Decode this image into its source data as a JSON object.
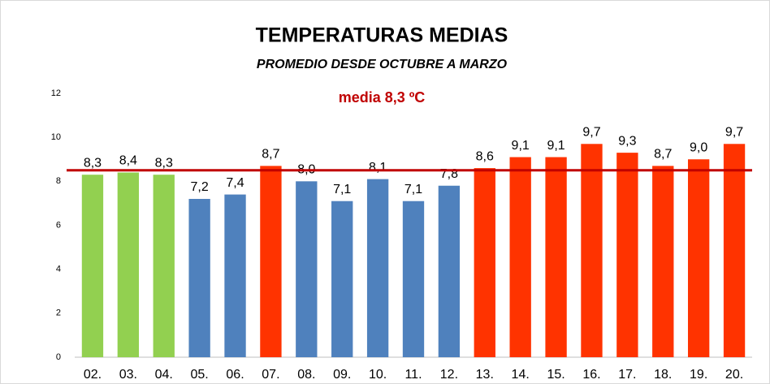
{
  "chart_data": {
    "type": "bar",
    "title": "TEMPERATURAS MEDIAS",
    "subtitle": "PROMEDIO DESDE OCTUBRE A MARZO",
    "annotation": "media 8,3 ºC",
    "categories": [
      "02.",
      "03.",
      "04.",
      "05.",
      "06.",
      "07.",
      "08.",
      "09.",
      "10.",
      "11.",
      "12.",
      "13.",
      "14.",
      "15.",
      "16.",
      "17.",
      "18.",
      "19.",
      "20."
    ],
    "values": [
      8.3,
      8.4,
      8.3,
      7.2,
      7.4,
      8.7,
      8.0,
      7.1,
      8.1,
      7.1,
      7.8,
      8.6,
      9.1,
      9.1,
      9.7,
      9.3,
      8.7,
      9.0,
      9.7
    ],
    "value_labels": [
      "8,3",
      "8,4",
      "8,3",
      "7,2",
      "7,4",
      "8,7",
      "8,0",
      "7,1",
      "8,1",
      "7,1",
      "7,8",
      "8,6",
      "9,1",
      "9,1",
      "9,7",
      "9,3",
      "8,7",
      "9,0",
      "9,7"
    ],
    "colors": [
      "#92d050",
      "#92d050",
      "#92d050",
      "#4f81bd",
      "#4f81bd",
      "#ff3300",
      "#4f81bd",
      "#4f81bd",
      "#4f81bd",
      "#4f81bd",
      "#4f81bd",
      "#ff3300",
      "#ff3300",
      "#ff3300",
      "#ff3300",
      "#ff3300",
      "#ff3300",
      "#ff3300",
      "#ff3300"
    ],
    "reference_line": {
      "value": 8.5,
      "color": "#c00000"
    },
    "ylim": [
      0,
      12
    ],
    "yticks": [
      0,
      2,
      4,
      6,
      8,
      10,
      12
    ],
    "grid": false
  }
}
